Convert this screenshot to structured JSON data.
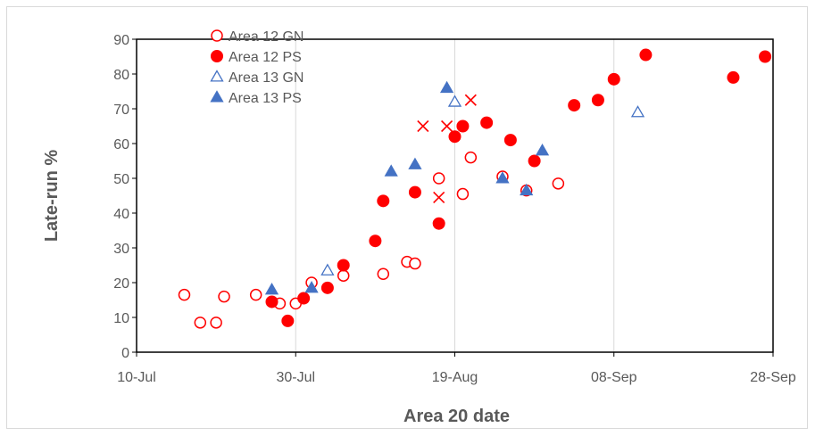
{
  "chart_data": {
    "type": "scatter",
    "title": "",
    "xlabel": "Area 20 date",
    "ylabel": "Late-run %",
    "x_axis_type": "date",
    "xlim": [
      "2000-07-10",
      "2000-09-28"
    ],
    "ylim": [
      0,
      90
    ],
    "x_ticks": [
      {
        "date": "2000-07-10",
        "label": "10-Jul"
      },
      {
        "date": "2000-07-30",
        "label": "30-Jul"
      },
      {
        "date": "2000-08-19",
        "label": "19-Aug"
      },
      {
        "date": "2000-09-08",
        "label": "08-Sep"
      },
      {
        "date": "2000-09-28",
        "label": "28-Sep"
      }
    ],
    "y_ticks": [
      0,
      10,
      20,
      30,
      40,
      50,
      60,
      70,
      80,
      90
    ],
    "grid": "vertical",
    "legend_position": "top-left",
    "series": [
      {
        "name": "Area 12 GN",
        "marker": "open-circle",
        "color": "#ff0000",
        "points": [
          {
            "x": "2000-07-16",
            "y": 16.5
          },
          {
            "x": "2000-07-18",
            "y": 8.5
          },
          {
            "x": "2000-07-20",
            "y": 8.5
          },
          {
            "x": "2000-07-21",
            "y": 16
          },
          {
            "x": "2000-07-25",
            "y": 16.5
          },
          {
            "x": "2000-07-28",
            "y": 14
          },
          {
            "x": "2000-07-30",
            "y": 14
          },
          {
            "x": "2000-08-01",
            "y": 20
          },
          {
            "x": "2000-08-05",
            "y": 22
          },
          {
            "x": "2000-08-10",
            "y": 22.5
          },
          {
            "x": "2000-08-13",
            "y": 26
          },
          {
            "x": "2000-08-14",
            "y": 25.5
          },
          {
            "x": "2000-08-17",
            "y": 50
          },
          {
            "x": "2000-08-20",
            "y": 45.5
          },
          {
            "x": "2000-08-21",
            "y": 56
          },
          {
            "x": "2000-08-25",
            "y": 50.5
          },
          {
            "x": "2000-08-28",
            "y": 46.5
          },
          {
            "x": "2000-09-01",
            "y": 48.5
          }
        ]
      },
      {
        "name": "Area 12 PS",
        "marker": "filled-circle",
        "color": "#ff0000",
        "points": [
          {
            "x": "2000-07-27",
            "y": 14.5
          },
          {
            "x": "2000-07-29",
            "y": 9
          },
          {
            "x": "2000-07-31",
            "y": 15.5
          },
          {
            "x": "2000-08-03",
            "y": 18.5
          },
          {
            "x": "2000-08-05",
            "y": 25
          },
          {
            "x": "2000-08-09",
            "y": 32
          },
          {
            "x": "2000-08-10",
            "y": 43.5
          },
          {
            "x": "2000-08-14",
            "y": 46
          },
          {
            "x": "2000-08-17",
            "y": 37
          },
          {
            "x": "2000-08-19",
            "y": 62
          },
          {
            "x": "2000-08-20",
            "y": 65
          },
          {
            "x": "2000-08-23",
            "y": 66
          },
          {
            "x": "2000-08-26",
            "y": 61
          },
          {
            "x": "2000-08-29",
            "y": 55
          },
          {
            "x": "2000-09-03",
            "y": 71
          },
          {
            "x": "2000-09-06",
            "y": 72.5
          },
          {
            "x": "2000-09-08",
            "y": 78.5
          },
          {
            "x": "2000-09-12",
            "y": 85.5
          },
          {
            "x": "2000-09-23",
            "y": 79
          },
          {
            "x": "2000-09-27",
            "y": 85
          }
        ]
      },
      {
        "name": "Area 13 GN",
        "marker": "open-triangle",
        "color": "#4472c4",
        "points": [
          {
            "x": "2000-08-03",
            "y": 23.5
          },
          {
            "x": "2000-08-19",
            "y": 72
          },
          {
            "x": "2000-09-11",
            "y": 69
          }
        ]
      },
      {
        "name": "Area 13 PS",
        "marker": "filled-triangle",
        "color": "#4472c4",
        "points": [
          {
            "x": "2000-07-27",
            "y": 18
          },
          {
            "x": "2000-08-01",
            "y": 18.5
          },
          {
            "x": "2000-08-11",
            "y": 52
          },
          {
            "x": "2000-08-14",
            "y": 54
          },
          {
            "x": "2000-08-18",
            "y": 76
          },
          {
            "x": "2000-08-25",
            "y": 50
          },
          {
            "x": "2000-08-28",
            "y": 46.5
          },
          {
            "x": "2000-08-30",
            "y": 58
          }
        ]
      },
      {
        "marker": "cross",
        "color": "#ff0000",
        "points": [
          {
            "x": "2000-08-15",
            "y": 65
          },
          {
            "x": "2000-08-17",
            "y": 44.5
          },
          {
            "x": "2000-08-18",
            "y": 65
          },
          {
            "x": "2000-08-21",
            "y": 72.5
          }
        ]
      }
    ]
  }
}
